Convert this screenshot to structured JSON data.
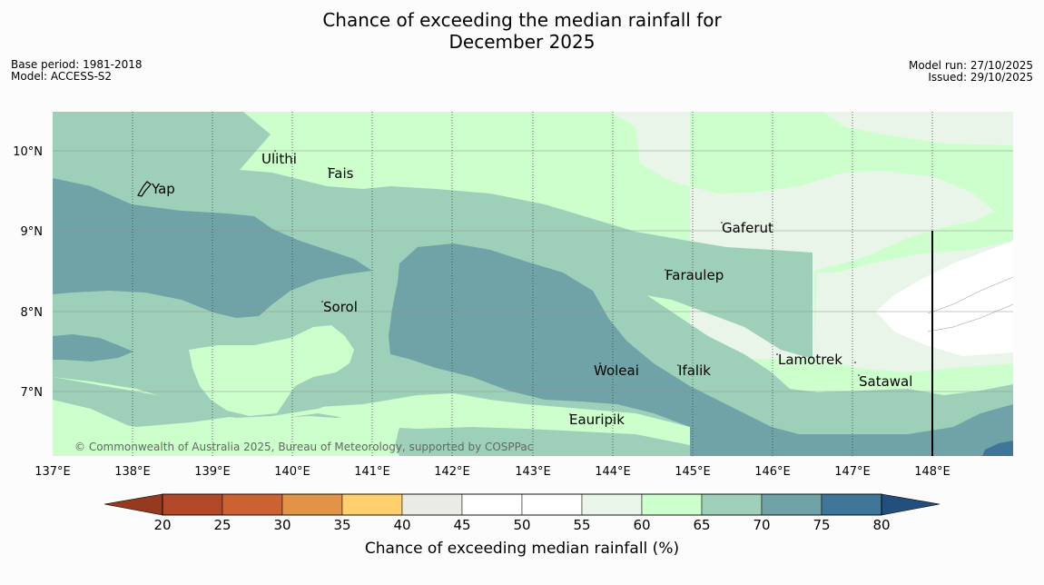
{
  "title": {
    "line1": "Chance of exceeding the median rainfall for",
    "line2": "December 2025"
  },
  "meta_left": {
    "base_period": "Base period: 1981-2018",
    "model": "Model: ACCESS-S2"
  },
  "meta_right": {
    "model_run": "Model run: 27/10/2025",
    "issued": "Issued: 29/10/2025"
  },
  "map": {
    "lon_labels": [
      "137°E",
      "138°E",
      "139°E",
      "140°E",
      "141°E",
      "142°E",
      "143°E",
      "144°E",
      "145°E",
      "146°E",
      "147°E",
      "148°E"
    ],
    "lat_labels": [
      "10°N",
      "9°N",
      "8°N",
      "7°N"
    ],
    "places": [
      "Ulithi",
      "Fais",
      "Yap",
      "Gaferut",
      "Faraulep",
      "Sorol",
      "Lamotrek",
      "Woleai",
      "Ifalik",
      "Satawal",
      "Eauripik"
    ],
    "copyright": "© Commonwealth of Australia 2025, Bureau of Meteorology, supported by COSPPac"
  },
  "colorbar": {
    "colors": [
      "#b3472a",
      "#cc6232",
      "#e19446",
      "#ffcf6b",
      "#ebebe5",
      "#ffffff",
      "#ffffff",
      "#eaf5e9",
      "#ccffcc",
      "#9ed0b9",
      "#6fa3a7",
      "#3e7699"
    ],
    "tick_labels": [
      "20",
      "25",
      "30",
      "35",
      "40",
      "45",
      "50",
      "55",
      "60",
      "65",
      "70",
      "75",
      "80"
    ],
    "label": "Chance of exceeding median rainfall (%)"
  },
  "colors": {
    "c55_60": "#eaf5e9",
    "c60_65": "#ccffcc",
    "c65_70": "#9ed0b9",
    "c70_75": "#6fa3a7",
    "c75_80": "#3e7699",
    "extend_low": "#953a1f",
    "extend_high": "#234f7c"
  }
}
